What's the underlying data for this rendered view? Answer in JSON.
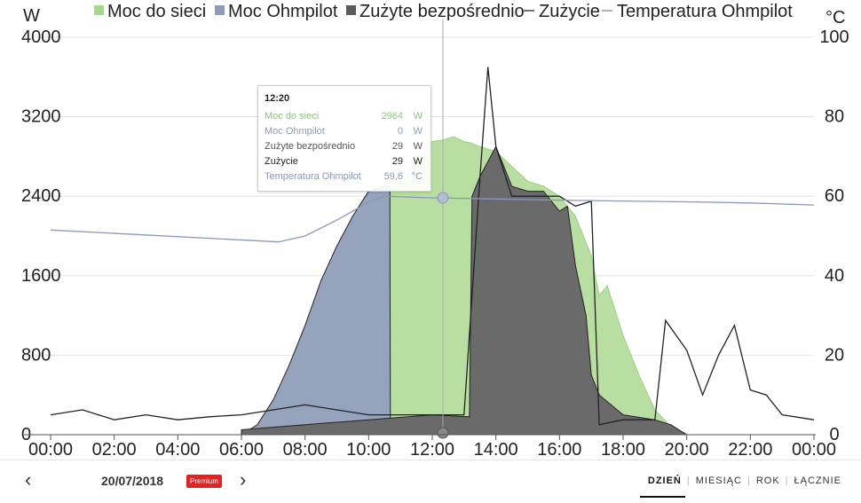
{
  "chart_data": {
    "type": "area",
    "y_left_unit": "W",
    "y_right_unit": "°C",
    "y_left_ticks": [
      "4000",
      "3200",
      "2400",
      "1600",
      "800",
      "0"
    ],
    "y_right_ticks": [
      "100",
      "80",
      "60",
      "40",
      "20",
      "0"
    ],
    "ylim_left": [
      0,
      4000
    ],
    "ylim_right": [
      0,
      100
    ],
    "x_ticks": [
      "00:00",
      "02:00",
      "04:00",
      "06:00",
      "08:00",
      "10:00",
      "12:00",
      "14:00",
      "16:00",
      "18:00",
      "20:00",
      "22:00",
      "00:00"
    ],
    "grid": true,
    "legend_position": "top",
    "legend": [
      {
        "label": "Moc do sieci",
        "color": "#a8d890",
        "marker": "square"
      },
      {
        "label": "Moc Ohmpilot",
        "color": "#8d9bb6",
        "marker": "square"
      },
      {
        "label": "Zużyte bezpośrednio",
        "color": "#5a5a5a",
        "marker": "square"
      },
      {
        "label": "Zużycie",
        "color": "#444444",
        "marker": "line"
      },
      {
        "label": "Temperatura Ohmpilot",
        "color": "#8b97bd",
        "marker": "line"
      }
    ],
    "series": [
      {
        "name": "Moc do sieci",
        "unit": "W",
        "x": [
          "10:40",
          "11:00",
          "11:30",
          "12:00",
          "12:20",
          "12:40",
          "13:00",
          "13:10",
          "13:30",
          "14:00",
          "14:30",
          "15:00",
          "15:30",
          "16:00",
          "16:30",
          "17:00",
          "17:15",
          "17:30",
          "18:00",
          "18:30",
          "19:00",
          "19:30",
          "20:00"
        ],
        "values": [
          2450,
          2500,
          2800,
          2950,
          2964,
          3000,
          2950,
          2940,
          2900,
          2850,
          2700,
          2550,
          2500,
          2400,
          2200,
          1800,
          1400,
          1500,
          1000,
          600,
          250,
          80,
          0
        ]
      },
      {
        "name": "Moc Ohmpilot",
        "unit": "W",
        "x": [
          "06:00",
          "06:30",
          "07:00",
          "07:30",
          "08:00",
          "08:30",
          "09:00",
          "09:30",
          "10:00",
          "10:30",
          "10:40",
          "10:41"
        ],
        "values": [
          0,
          100,
          350,
          700,
          1100,
          1550,
          1900,
          2200,
          2450,
          2500,
          2500,
          0
        ]
      },
      {
        "name": "Zużyte bezpośrednio",
        "unit": "W",
        "x": [
          "06:00",
          "08:00",
          "10:00",
          "12:00",
          "13:10",
          "13:15",
          "13:30",
          "14:00",
          "14:30",
          "15:00",
          "15:30",
          "16:00",
          "16:15",
          "16:30",
          "16:50",
          "17:00",
          "17:15",
          "18:00",
          "19:00",
          "19:30",
          "20:00"
        ],
        "values": [
          50,
          100,
          150,
          200,
          180,
          2400,
          2600,
          2900,
          2500,
          2450,
          2450,
          2250,
          2300,
          1700,
          1200,
          600,
          400,
          200,
          150,
          100,
          0
        ]
      },
      {
        "name": "Zużycie",
        "unit": "W",
        "x": [
          "00:00",
          "01:00",
          "02:00",
          "03:00",
          "04:00",
          "05:00",
          "06:00",
          "07:00",
          "08:00",
          "09:00",
          "10:00",
          "11:00",
          "12:00",
          "13:00",
          "13:30",
          "13:45",
          "14:00",
          "14:30",
          "15:00",
          "15:30",
          "16:00",
          "16:30",
          "17:00",
          "17:15",
          "18:00",
          "19:00",
          "19:20",
          "19:40",
          "20:00",
          "20:30",
          "21:00",
          "21:30",
          "22:00",
          "22:30",
          "23:00",
          "00:00"
        ],
        "values": [
          200,
          250,
          150,
          200,
          150,
          180,
          200,
          250,
          300,
          250,
          200,
          200,
          200,
          200,
          2600,
          3700,
          2900,
          2400,
          2400,
          2400,
          2400,
          2300,
          2350,
          100,
          150,
          150,
          1150,
          1000,
          850,
          400,
          800,
          1100,
          450,
          400,
          200,
          150
        ]
      },
      {
        "name": "Temperatura Ohmpilot",
        "unit": "°C",
        "x": [
          "00:00",
          "07:10",
          "08:00",
          "09:00",
          "10:00",
          "10:30",
          "12:00",
          "14:00",
          "16:00",
          "18:00",
          "20:00",
          "22:00",
          "00:00"
        ],
        "values": [
          51.5,
          48.5,
          50,
          54,
          58.5,
          60,
          59.6,
          59.3,
          59,
          58.8,
          58.6,
          58.3,
          57.8
        ]
      }
    ]
  },
  "tooltip": {
    "time": "12:20",
    "rows": [
      {
        "label": "Moc do sieci",
        "value": "2964",
        "unit": "W",
        "color": "#8ec97a"
      },
      {
        "label": "Moc Ohmpilot",
        "value": "0",
        "unit": "W",
        "color": "#8d9bb6"
      },
      {
        "label": "Zużyte bezpośrednio",
        "value": "29",
        "unit": "W",
        "color": "#555555"
      },
      {
        "label": "Zużycie",
        "value": "29",
        "unit": "W",
        "color": "#222222"
      },
      {
        "label": "Temperatura Ohmpilot",
        "value": "59,6",
        "unit": "°C",
        "color": "#8b97bd"
      }
    ]
  },
  "footer": {
    "prev_icon": "‹",
    "next_icon": "›",
    "date": "20/07/2018",
    "premium_badge": "Premium",
    "periods": [
      "DZIEŃ",
      "MIESIĄC",
      "ROK",
      "ŁĄCZNIE"
    ],
    "active_period": "DZIEŃ"
  }
}
